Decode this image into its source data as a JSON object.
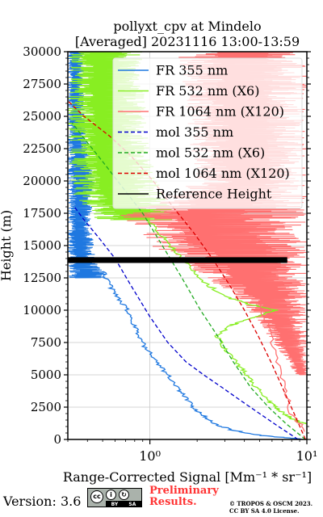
{
  "chart_data": {
    "type": "line",
    "title_line1": "pollyxt_cpv at Mindelo",
    "title_line2": "[Averaged] 20231116 13:00-13:59",
    "xlabel": "Range-Corrected Signal [Mm⁻¹ * sr⁻¹]",
    "ylabel": "Height (m)",
    "xscale": "log",
    "xlim": [
      0.3,
      10
    ],
    "ylim": [
      0,
      30000
    ],
    "xticks": [
      {
        "value": 1,
        "label": "10⁰"
      },
      {
        "value": 10,
        "label": "10¹"
      }
    ],
    "yticks": [
      0,
      2500,
      5000,
      7500,
      10000,
      12500,
      15000,
      17500,
      20000,
      22500,
      25000,
      27500,
      30000
    ],
    "ytick_labels": [
      "0",
      "2500",
      "5000",
      "7500",
      "10000",
      "12500",
      "15000",
      "17500",
      "20000",
      "22500",
      "25000",
      "27500",
      "30000"
    ],
    "grid": true,
    "legend_position": "top-right",
    "reference_height_range": [
      13700,
      14100
    ],
    "series": [
      {
        "name": "FR 355 nm",
        "style": "solid",
        "color": "#1f78e0",
        "points": [
          [
            9.5,
            0
          ],
          [
            8.0,
            100
          ],
          [
            5.2,
            300
          ],
          [
            3.4,
            700
          ],
          [
            2.6,
            1200
          ],
          [
            2.2,
            1800
          ],
          [
            1.9,
            2500
          ],
          [
            1.7,
            3200
          ],
          [
            1.5,
            4000
          ],
          [
            1.3,
            5000
          ],
          [
            1.1,
            6000
          ],
          [
            0.95,
            7000
          ],
          [
            0.85,
            8000
          ],
          [
            0.78,
            9000
          ],
          [
            0.72,
            10000
          ],
          [
            0.62,
            11000
          ],
          [
            0.55,
            12000
          ],
          [
            0.5,
            13000
          ]
        ],
        "noise_band": [
          [
            12500,
            0.3,
            0.55
          ],
          [
            14000,
            0.3,
            0.45
          ],
          [
            17000,
            0.3,
            0.42
          ],
          [
            20000,
            0.3,
            0.45
          ],
          [
            23000,
            0.3,
            0.4
          ],
          [
            26000,
            0.3,
            0.38
          ],
          [
            30000,
            0.3,
            0.38
          ]
        ]
      },
      {
        "name": "FR 532 nm (X6)",
        "style": "solid",
        "color": "#88ee22",
        "points": [
          [
            10,
            1200
          ],
          [
            9.3,
            1300
          ],
          [
            8.4,
            1500
          ],
          [
            7.2,
            2000
          ],
          [
            6.2,
            2600
          ],
          [
            5.4,
            3300
          ],
          [
            4.6,
            4200
          ],
          [
            4.0,
            5200
          ],
          [
            3.6,
            6000
          ],
          [
            3.0,
            7000
          ],
          [
            2.7,
            8000
          ],
          [
            3.2,
            8800
          ],
          [
            4.0,
            9200
          ],
          [
            5.6,
            9800
          ],
          [
            6.4,
            10000
          ],
          [
            4.2,
            10500
          ],
          [
            3.1,
            11000
          ],
          [
            2.3,
            12000
          ],
          [
            1.9,
            13000
          ],
          [
            1.6,
            14000
          ],
          [
            1.35,
            15000
          ],
          [
            1.15,
            16000
          ],
          [
            0.95,
            17000
          ]
        ],
        "noise_band": [
          [
            17000,
            0.45,
            1.5
          ],
          [
            19000,
            0.32,
            1.2
          ],
          [
            22000,
            0.3,
            1.0
          ],
          [
            25000,
            0.3,
            0.95
          ],
          [
            28000,
            0.3,
            0.9
          ],
          [
            30000,
            0.3,
            0.9
          ]
        ]
      },
      {
        "name": "FR 1064 nm (X120)",
        "style": "solid",
        "color": "#ff7070",
        "points": [
          [
            10,
            600
          ],
          [
            8.0,
            2000
          ],
          [
            7.0,
            4500
          ],
          [
            6.0,
            7500
          ],
          [
            5.2,
            10000
          ],
          [
            4.5,
            12000
          ],
          [
            3.8,
            13500
          ]
        ],
        "noise_band": [
          [
            5000,
            8.5,
            10
          ],
          [
            7500,
            6.0,
            10
          ],
          [
            10000,
            4.2,
            10
          ],
          [
            12500,
            2.2,
            10
          ],
          [
            15000,
            1.0,
            10
          ],
          [
            17500,
            0.6,
            10
          ],
          [
            20000,
            1.9,
            10
          ],
          [
            25000,
            1.7,
            10
          ],
          [
            30000,
            1.5,
            10
          ]
        ]
      },
      {
        "name": "mol 355 nm",
        "style": "dashed",
        "color": "#0000cc",
        "points": [
          [
            8.8,
            0
          ],
          [
            6.6,
            1000
          ],
          [
            5.0,
            2000
          ],
          [
            3.8,
            3000
          ],
          [
            2.9,
            4000
          ],
          [
            2.2,
            5000
          ],
          [
            1.7,
            6000
          ],
          [
            1.3,
            7500
          ],
          [
            1.0,
            9500
          ],
          [
            0.75,
            12000
          ],
          [
            0.6,
            14000
          ],
          [
            0.48,
            15500
          ],
          [
            0.38,
            17000
          ],
          [
            0.33,
            18000
          ]
        ]
      },
      {
        "name": "mol 532 nm (X6)",
        "style": "dashed",
        "color": "#22aa22",
        "points": [
          [
            9.8,
            0
          ],
          [
            7.4,
            1200
          ],
          [
            5.7,
            2500
          ],
          [
            4.4,
            4000
          ],
          [
            3.4,
            6000
          ],
          [
            2.7,
            8000
          ],
          [
            2.1,
            10000
          ],
          [
            1.6,
            12500
          ],
          [
            1.2,
            15000
          ],
          [
            0.9,
            17500
          ],
          [
            0.67,
            19500
          ],
          [
            0.5,
            21500
          ],
          [
            0.38,
            23300
          ],
          [
            0.32,
            24500
          ]
        ]
      },
      {
        "name": "mol 1064 nm (X120)",
        "style": "dashed",
        "color": "#dd0000",
        "points": [
          [
            9.8,
            0
          ],
          [
            8.3,
            2000
          ],
          [
            7.0,
            4000
          ],
          [
            5.9,
            6000
          ],
          [
            4.9,
            8000
          ],
          [
            4.0,
            10000
          ],
          [
            3.2,
            12000
          ],
          [
            2.5,
            14000
          ],
          [
            1.9,
            16000
          ],
          [
            1.4,
            18000
          ],
          [
            1.05,
            20000
          ],
          [
            0.75,
            22000
          ],
          [
            0.55,
            23500
          ],
          [
            0.38,
            25000
          ],
          [
            0.3,
            26200
          ]
        ]
      },
      {
        "name": "Reference Height",
        "style": "solid",
        "color": "#000000",
        "points": []
      }
    ]
  },
  "footer": {
    "version": "Version: 3.6",
    "cc_labels": [
      "BY",
      "SA"
    ],
    "preliminary_line1": "Preliminary",
    "preliminary_line2": "Results.",
    "copyright_line1": "© TROPOS & OSCM 2023.",
    "copyright_line2": "CC BY SA 4.0 License."
  }
}
